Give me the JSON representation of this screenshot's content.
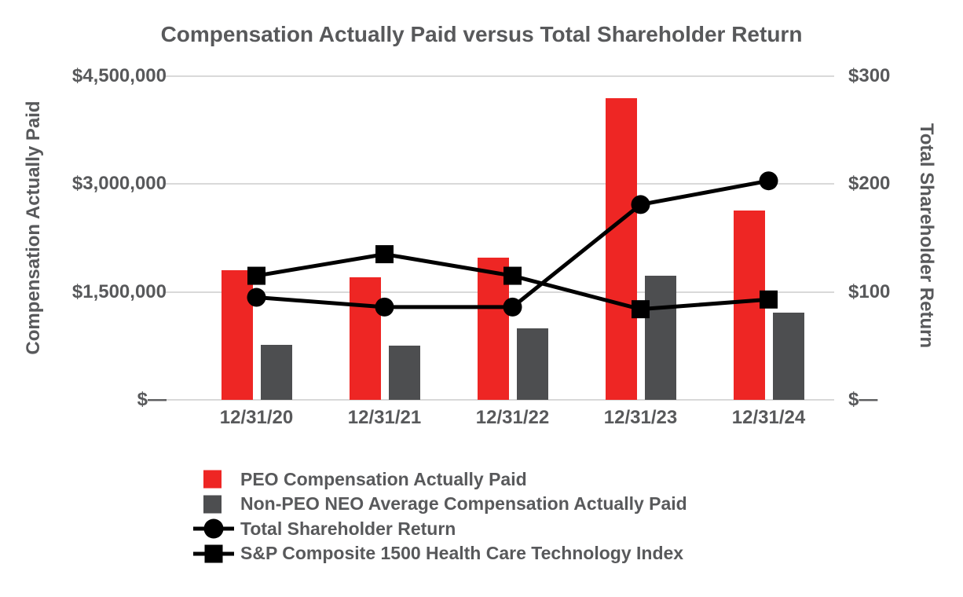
{
  "title": "Compensation Actually Paid versus Total Shareholder Return",
  "colors": {
    "peo_bar_red": "#EE2624",
    "neo_bar_gray": "#4D4E50",
    "line_black": "#000000",
    "gridline_gray": "#D9D9D9",
    "text_gray": "#58595B",
    "background": "#FFFFFF"
  },
  "left_axis": {
    "title": "Compensation Actually Paid",
    "max": 4500000,
    "ticks": [
      {
        "label": "$4,500,000",
        "value": 4500000
      },
      {
        "label": "$3,000,000",
        "value": 3000000
      },
      {
        "label": "$1,500,000",
        "value": 1500000
      },
      {
        "label": "$—",
        "value": 0
      }
    ]
  },
  "right_axis": {
    "title": "Total Shareholder Return",
    "max": 300,
    "ticks": [
      {
        "label": "$300",
        "value": 300
      },
      {
        "label": "$200",
        "value": 200
      },
      {
        "label": "$100",
        "value": 100
      },
      {
        "label": "$—",
        "value": 0
      }
    ]
  },
  "chart_data": {
    "type": "combo-bar-line",
    "title": "Compensation Actually Paid versus Total Shareholder Return",
    "categories": [
      "12/31/20",
      "12/31/21",
      "12/31/22",
      "12/31/23",
      "12/31/24"
    ],
    "left_ylabel": "Compensation Actually Paid",
    "right_ylabel": "Total Shareholder Return",
    "left_ylim": [
      0,
      4500000
    ],
    "right_ylim": [
      0,
      300
    ],
    "grid": true,
    "legend_position": "bottom-left",
    "series": [
      {
        "name": "PEO Compensation Actually Paid",
        "type": "bar",
        "axis": "left",
        "color": "#EE2624",
        "values": [
          1800000,
          1700000,
          1980000,
          4190000,
          2630000
        ]
      },
      {
        "name": "Non-PEO NEO Average Compensation Actually Paid",
        "type": "bar",
        "axis": "left",
        "color": "#4D4E50",
        "values": [
          760000,
          750000,
          990000,
          1730000,
          1210000
        ]
      },
      {
        "name": "Total Shareholder Return",
        "type": "line",
        "marker": "circle",
        "axis": "right",
        "color": "#000000",
        "values": [
          95,
          86,
          86,
          181,
          203
        ]
      },
      {
        "name": "S&P Composite 1500 Health Care Technology Index",
        "type": "line",
        "marker": "square",
        "axis": "right",
        "color": "#000000",
        "values": [
          115,
          135,
          115,
          84,
          93
        ]
      }
    ]
  }
}
